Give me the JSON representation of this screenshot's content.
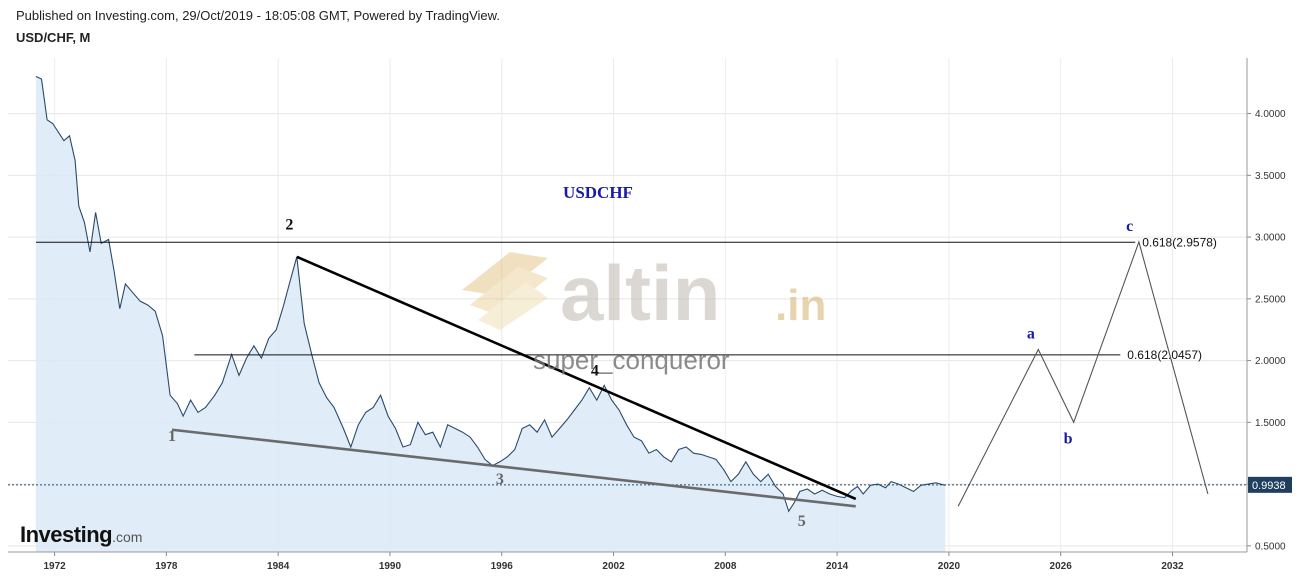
{
  "header": {
    "published": "Published on Investing.com, 29/Oct/2019 - 18:05:08 GMT, Powered by TradingView.",
    "symbol": "USD/CHF, M"
  },
  "branding": {
    "logo_main": "Investing",
    "logo_suffix": ".com",
    "watermark_word": "altin",
    "watermark_tld": ".in",
    "watermark_user": "super_conqueror"
  },
  "chart_data": {
    "type": "area",
    "title": "USDCHF",
    "current_price_label": "0.9938",
    "x_tick_labels": [
      "1972",
      "1978",
      "1984",
      "1990",
      "1996",
      "2002",
      "2008",
      "2014",
      "2020",
      "2026",
      "2032"
    ],
    "y_tick_labels": [
      "0.5000",
      "1.0000",
      "1.5000",
      "2.0000",
      "2.5000",
      "3.0000",
      "3.5000",
      "4.0000"
    ],
    "ylim": [
      0.45,
      4.45
    ],
    "xlim": [
      1969.5,
      2036.0
    ],
    "grid": true,
    "series": [
      {
        "values_xy": [
          [
            1971.0,
            4.3
          ],
          [
            1971.3,
            4.28
          ],
          [
            1971.6,
            3.95
          ],
          [
            1971.9,
            3.92
          ],
          [
            1972.2,
            3.85
          ],
          [
            1972.5,
            3.78
          ],
          [
            1972.8,
            3.82
          ],
          [
            1973.1,
            3.62
          ],
          [
            1973.3,
            3.25
          ],
          [
            1973.6,
            3.12
          ],
          [
            1973.9,
            2.88
          ],
          [
            1974.2,
            3.2
          ],
          [
            1974.5,
            2.95
          ],
          [
            1974.9,
            2.98
          ],
          [
            1975.2,
            2.72
          ],
          [
            1975.5,
            2.42
          ],
          [
            1975.8,
            2.62
          ],
          [
            1976.2,
            2.55
          ],
          [
            1976.6,
            2.48
          ],
          [
            1977.0,
            2.45
          ],
          [
            1977.4,
            2.4
          ],
          [
            1977.8,
            2.2
          ],
          [
            1978.2,
            1.72
          ],
          [
            1978.6,
            1.65
          ],
          [
            1978.9,
            1.55
          ],
          [
            1979.3,
            1.68
          ],
          [
            1979.7,
            1.58
          ],
          [
            1980.1,
            1.62
          ],
          [
            1980.6,
            1.72
          ],
          [
            1981.0,
            1.82
          ],
          [
            1981.5,
            2.05
          ],
          [
            1981.9,
            1.88
          ],
          [
            1982.3,
            2.02
          ],
          [
            1982.7,
            2.12
          ],
          [
            1983.1,
            2.02
          ],
          [
            1983.5,
            2.18
          ],
          [
            1983.9,
            2.25
          ],
          [
            1984.3,
            2.45
          ],
          [
            1984.6,
            2.62
          ],
          [
            1985.0,
            2.84
          ],
          [
            1985.4,
            2.3
          ],
          [
            1985.8,
            2.05
          ],
          [
            1986.2,
            1.82
          ],
          [
            1986.6,
            1.7
          ],
          [
            1987.0,
            1.62
          ],
          [
            1987.5,
            1.45
          ],
          [
            1987.9,
            1.3
          ],
          [
            1988.3,
            1.48
          ],
          [
            1988.7,
            1.58
          ],
          [
            1989.1,
            1.62
          ],
          [
            1989.5,
            1.72
          ],
          [
            1989.9,
            1.55
          ],
          [
            1990.3,
            1.45
          ],
          [
            1990.7,
            1.3
          ],
          [
            1991.1,
            1.32
          ],
          [
            1991.5,
            1.5
          ],
          [
            1991.9,
            1.4
          ],
          [
            1992.3,
            1.42
          ],
          [
            1992.7,
            1.3
          ],
          [
            1993.1,
            1.48
          ],
          [
            1993.5,
            1.45
          ],
          [
            1993.9,
            1.42
          ],
          [
            1994.3,
            1.38
          ],
          [
            1994.7,
            1.3
          ],
          [
            1995.1,
            1.2
          ],
          [
            1995.5,
            1.15
          ],
          [
            1995.9,
            1.18
          ],
          [
            1996.3,
            1.22
          ],
          [
            1996.7,
            1.28
          ],
          [
            1997.1,
            1.45
          ],
          [
            1997.5,
            1.48
          ],
          [
            1997.9,
            1.42
          ],
          [
            1998.3,
            1.52
          ],
          [
            1998.7,
            1.38
          ],
          [
            1999.1,
            1.45
          ],
          [
            1999.5,
            1.52
          ],
          [
            1999.9,
            1.6
          ],
          [
            2000.3,
            1.68
          ],
          [
            2000.7,
            1.78
          ],
          [
            2001.1,
            1.68
          ],
          [
            2001.5,
            1.8
          ],
          [
            2001.9,
            1.68
          ],
          [
            2002.3,
            1.6
          ],
          [
            2002.7,
            1.48
          ],
          [
            2003.1,
            1.38
          ],
          [
            2003.5,
            1.35
          ],
          [
            2003.9,
            1.25
          ],
          [
            2004.3,
            1.28
          ],
          [
            2004.7,
            1.22
          ],
          [
            2005.1,
            1.18
          ],
          [
            2005.5,
            1.28
          ],
          [
            2005.9,
            1.3
          ],
          [
            2006.3,
            1.25
          ],
          [
            2006.7,
            1.24
          ],
          [
            2007.1,
            1.22
          ],
          [
            2007.5,
            1.2
          ],
          [
            2007.9,
            1.12
          ],
          [
            2008.3,
            1.02
          ],
          [
            2008.7,
            1.08
          ],
          [
            2009.1,
            1.18
          ],
          [
            2009.5,
            1.08
          ],
          [
            2009.9,
            1.02
          ],
          [
            2010.3,
            1.08
          ],
          [
            2010.7,
            0.98
          ],
          [
            2011.1,
            0.92
          ],
          [
            2011.4,
            0.78
          ],
          [
            2011.7,
            0.85
          ],
          [
            2012.0,
            0.94
          ],
          [
            2012.4,
            0.96
          ],
          [
            2012.8,
            0.92
          ],
          [
            2013.2,
            0.95
          ],
          [
            2013.6,
            0.92
          ],
          [
            2014.0,
            0.9
          ],
          [
            2014.4,
            0.89
          ],
          [
            2014.8,
            0.95
          ],
          [
            2015.1,
            0.98
          ],
          [
            2015.4,
            0.92
          ],
          [
            2015.8,
            0.99
          ],
          [
            2016.2,
            1.0
          ],
          [
            2016.6,
            0.97
          ],
          [
            2016.9,
            1.02
          ],
          [
            2017.3,
            1.0
          ],
          [
            2017.7,
            0.97
          ],
          [
            2018.1,
            0.94
          ],
          [
            2018.5,
            0.99
          ],
          [
            2018.9,
            1.0
          ],
          [
            2019.3,
            1.01
          ],
          [
            2019.8,
            0.99
          ]
        ]
      }
    ],
    "wave_labels": [
      {
        "text": "1",
        "x": 1978.3,
        "y": 1.35,
        "color": "#666666"
      },
      {
        "text": "2",
        "x": 1984.6,
        "y": 3.06,
        "color": "#111111"
      },
      {
        "text": "3",
        "x": 1995.9,
        "y": 1.0,
        "color": "#666666"
      },
      {
        "text": "4",
        "x": 2001.0,
        "y": 1.88,
        "color": "#111111"
      },
      {
        "text": "5",
        "x": 2012.1,
        "y": 0.66,
        "color": "#666666"
      },
      {
        "text": "a",
        "x": 2024.4,
        "y": 2.18,
        "color": "#1a1aa8"
      },
      {
        "text": "b",
        "x": 2026.4,
        "y": 1.33,
        "color": "#1a1aa8"
      },
      {
        "text": "c",
        "x": 2029.7,
        "y": 3.05,
        "color": "#1a1aa8"
      }
    ],
    "fib_levels": [
      {
        "label": "0.618(2.9578)",
        "price": 2.9578,
        "x_start": 1971.0,
        "x_end": 2030.0
      },
      {
        "label": "0.618(2.0457)",
        "price": 2.0457,
        "x_start": 1979.5,
        "x_end": 2029.2
      }
    ],
    "trendlines": [
      {
        "name": "upper-trendline",
        "points": [
          [
            1985.0,
            2.84
          ],
          [
            2015.0,
            0.88
          ]
        ],
        "color": "#000000"
      },
      {
        "name": "lower-trendline",
        "points": [
          [
            1978.3,
            1.44
          ],
          [
            2015.0,
            0.82
          ]
        ],
        "color": "#6a6a6a"
      }
    ],
    "projection": {
      "points": [
        [
          2020.5,
          0.82
        ],
        [
          2024.8,
          2.09
        ],
        [
          2026.7,
          1.5
        ],
        [
          2030.2,
          2.96
        ],
        [
          2033.9,
          0.92
        ]
      ],
      "color": "#555555"
    },
    "current_price_line": 0.9938
  }
}
